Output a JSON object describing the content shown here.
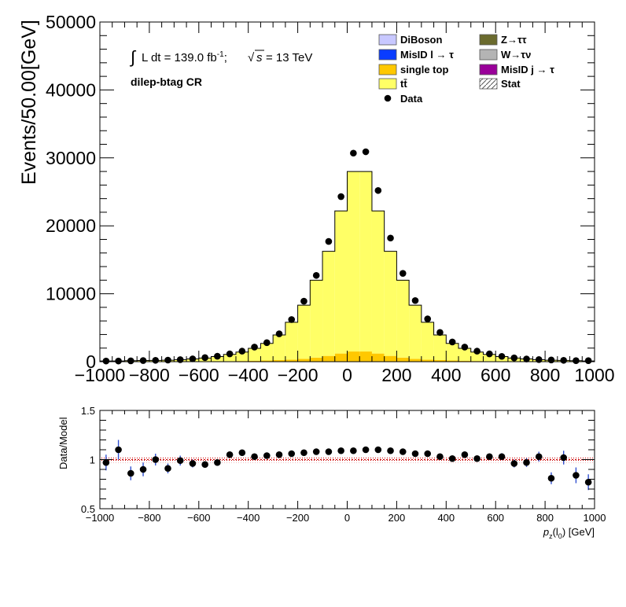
{
  "chart_data": [
    {
      "type": "histogram",
      "ylabel": "Events/50.00[GeV]",
      "xlim": [
        -1000,
        1000
      ],
      "ylim": [
        0,
        50000
      ],
      "annotations": {
        "lumi_integral": "∫",
        "lumi_text": "L dt = 139.0 fb",
        "lumi_sup": "-1",
        "lumi_sep": ";",
        "sqrt": "√",
        "s_var": "s",
        "energy": "= 13 TeV",
        "region": "dilep-btag CR"
      },
      "x_ticks": [
        "−1000",
        "−800",
        "−600",
        "−400",
        "−200",
        "0",
        "200",
        "400",
        "600",
        "800",
        "1000"
      ],
      "y_ticks": [
        "0",
        "10000",
        "20000",
        "30000",
        "40000",
        "50000"
      ],
      "bin_edges": [
        -1000,
        -950,
        -900,
        -850,
        -800,
        -750,
        -700,
        -650,
        -600,
        -550,
        -500,
        -450,
        -400,
        -350,
        -300,
        -250,
        -200,
        -150,
        -100,
        -50,
        0,
        50,
        100,
        150,
        200,
        250,
        300,
        350,
        400,
        450,
        500,
        550,
        600,
        650,
        700,
        750,
        800,
        850,
        900,
        950,
        1000
      ],
      "legend": [
        {
          "label": "DiBoson",
          "color": "#c8c8ff",
          "kind": "box"
        },
        {
          "label": "Z→ττ",
          "color": "#6b6b2e",
          "kind": "box"
        },
        {
          "label": "MisID l → τ",
          "color": "#0a3cff",
          "kind": "box"
        },
        {
          "label": "W→τν",
          "color": "#b4b4b4",
          "kind": "box"
        },
        {
          "label": "single top",
          "color": "#ffc800",
          "kind": "box"
        },
        {
          "label": "MisID j → τ",
          "color": "#990099",
          "kind": "box"
        },
        {
          "label": "tt̄",
          "color": "#ffff66",
          "kind": "box"
        },
        {
          "label": "Stat",
          "color": "#ffffff",
          "kind": "hatch"
        },
        {
          "label": "Data",
          "color": "#000000",
          "kind": "marker"
        }
      ],
      "series": [
        {
          "name": "single top",
          "color": "#ffc800",
          "values": [
            5,
            5,
            10,
            10,
            15,
            20,
            25,
            30,
            40,
            50,
            70,
            100,
            130,
            170,
            230,
            300,
            420,
            600,
            850,
            1200,
            1500,
            1500,
            1200,
            850,
            600,
            420,
            300,
            230,
            170,
            130,
            100,
            70,
            50,
            40,
            30,
            25,
            20,
            15,
            10,
            5
          ]
        },
        {
          "name": "tt̄",
          "color": "#ffff66",
          "values": [
            100,
            90,
            130,
            170,
            180,
            200,
            270,
            370,
            500,
            700,
            1000,
            1320,
            1840,
            2520,
            3700,
            5500,
            7900,
            11400,
            15400,
            21000,
            26500,
            26500,
            21000,
            15400,
            11400,
            7900,
            5500,
            3700,
            2520,
            1840,
            1320,
            1000,
            700,
            500,
            370,
            270,
            200,
            180,
            130,
            100
          ]
        }
      ],
      "data": [
        {
          "x": -975,
          "y": 100
        },
        {
          "x": -925,
          "y": 100
        },
        {
          "x": -875,
          "y": 120
        },
        {
          "x": -825,
          "y": 170
        },
        {
          "x": -775,
          "y": 200
        },
        {
          "x": -725,
          "y": 230
        },
        {
          "x": -675,
          "y": 300
        },
        {
          "x": -625,
          "y": 420
        },
        {
          "x": -575,
          "y": 600
        },
        {
          "x": -525,
          "y": 800
        },
        {
          "x": -475,
          "y": 1150
        },
        {
          "x": -425,
          "y": 1550
        },
        {
          "x": -375,
          "y": 2150
        },
        {
          "x": -325,
          "y": 2800
        },
        {
          "x": -275,
          "y": 4100
        },
        {
          "x": -225,
          "y": 6200
        },
        {
          "x": -175,
          "y": 8900
        },
        {
          "x": -125,
          "y": 12700
        },
        {
          "x": -75,
          "y": 17700
        },
        {
          "x": -25,
          "y": 24300
        },
        {
          "x": 25,
          "y": 30700
        },
        {
          "x": 75,
          "y": 30900
        },
        {
          "x": 125,
          "y": 25200
        },
        {
          "x": 175,
          "y": 18200
        },
        {
          "x": 225,
          "y": 13000
        },
        {
          "x": 275,
          "y": 9000
        },
        {
          "x": 325,
          "y": 6300
        },
        {
          "x": 375,
          "y": 4300
        },
        {
          "x": 425,
          "y": 2900
        },
        {
          "x": 475,
          "y": 2150
        },
        {
          "x": 525,
          "y": 1550
        },
        {
          "x": 575,
          "y": 1150
        },
        {
          "x": 625,
          "y": 780
        },
        {
          "x": 675,
          "y": 560
        },
        {
          "x": 725,
          "y": 400
        },
        {
          "x": 775,
          "y": 310
        },
        {
          "x": 825,
          "y": 250
        },
        {
          "x": 875,
          "y": 200
        },
        {
          "x": 925,
          "y": 150
        },
        {
          "x": 975,
          "y": 150
        }
      ]
    },
    {
      "type": "scatter",
      "ylabel": "Data/Model",
      "xlabel": "p_z(l_0) [GeV]",
      "xlabel_parts": {
        "p": "p",
        "sub1": "z",
        "mid": "(l",
        "sub2": "0",
        "end": ") [GeV]"
      },
      "xlim": [
        -1000,
        1000
      ],
      "ylim": [
        0.5,
        1.5
      ],
      "x_ticks": [
        "−1000",
        "−800",
        "−600",
        "−400",
        "−200",
        "0",
        "200",
        "400",
        "600",
        "800",
        "1000"
      ],
      "y_ticks": [
        "0.5",
        "1",
        "1.5"
      ],
      "reference_line": 1.0,
      "points": [
        {
          "x": -975,
          "y": 0.97,
          "err": 0.08
        },
        {
          "x": -925,
          "y": 1.1,
          "err": 0.1
        },
        {
          "x": -875,
          "y": 0.86,
          "err": 0.07
        },
        {
          "x": -825,
          "y": 0.9,
          "err": 0.07
        },
        {
          "x": -775,
          "y": 1.0,
          "err": 0.06
        },
        {
          "x": -725,
          "y": 0.91,
          "err": 0.05
        },
        {
          "x": -675,
          "y": 0.99,
          "err": 0.05
        },
        {
          "x": -625,
          "y": 0.96,
          "err": 0.04
        },
        {
          "x": -575,
          "y": 0.95,
          "err": 0.03
        },
        {
          "x": -525,
          "y": 0.97,
          "err": 0.03
        },
        {
          "x": -475,
          "y": 1.05,
          "err": 0.025
        },
        {
          "x": -425,
          "y": 1.07,
          "err": 0.02
        },
        {
          "x": -375,
          "y": 1.03,
          "err": 0.02
        },
        {
          "x": -325,
          "y": 1.04,
          "err": 0.015
        },
        {
          "x": -275,
          "y": 1.05,
          "err": 0.012
        },
        {
          "x": -225,
          "y": 1.06,
          "err": 0.01
        },
        {
          "x": -175,
          "y": 1.07,
          "err": 0.01
        },
        {
          "x": -125,
          "y": 1.08,
          "err": 0.008
        },
        {
          "x": -75,
          "y": 1.08,
          "err": 0.007
        },
        {
          "x": -25,
          "y": 1.09,
          "err": 0.006
        },
        {
          "x": 25,
          "y": 1.09,
          "err": 0.006
        },
        {
          "x": 75,
          "y": 1.1,
          "err": 0.006
        },
        {
          "x": 125,
          "y": 1.1,
          "err": 0.007
        },
        {
          "x": 175,
          "y": 1.09,
          "err": 0.008
        },
        {
          "x": 225,
          "y": 1.08,
          "err": 0.01
        },
        {
          "x": 275,
          "y": 1.06,
          "err": 0.01
        },
        {
          "x": 325,
          "y": 1.06,
          "err": 0.012
        },
        {
          "x": 375,
          "y": 1.03,
          "err": 0.015
        },
        {
          "x": 425,
          "y": 1.01,
          "err": 0.02
        },
        {
          "x": 475,
          "y": 1.05,
          "err": 0.02
        },
        {
          "x": 525,
          "y": 1.01,
          "err": 0.025
        },
        {
          "x": 575,
          "y": 1.03,
          "err": 0.03
        },
        {
          "x": 625,
          "y": 1.03,
          "err": 0.035
        },
        {
          "x": 675,
          "y": 0.96,
          "err": 0.04
        },
        {
          "x": 725,
          "y": 0.97,
          "err": 0.045
        },
        {
          "x": 775,
          "y": 1.03,
          "err": 0.05
        },
        {
          "x": 825,
          "y": 0.81,
          "err": 0.06
        },
        {
          "x": 875,
          "y": 1.02,
          "err": 0.07
        },
        {
          "x": 925,
          "y": 0.84,
          "err": 0.08
        },
        {
          "x": 975,
          "y": 0.77,
          "err": 0.08
        }
      ]
    }
  ]
}
